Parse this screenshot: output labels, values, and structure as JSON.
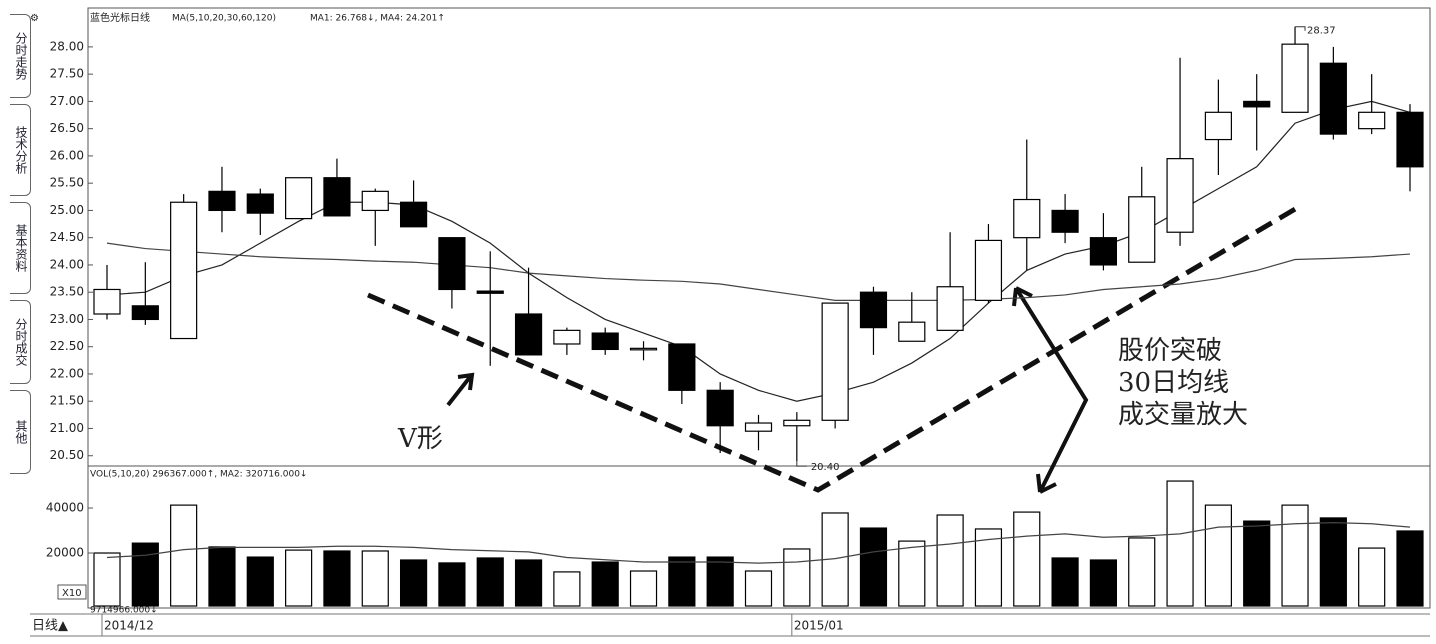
{
  "chart_data": {
    "type": "candlestick",
    "header": [
      "蓝色光标日线",
      "MA(5,10,20,30,60,120)",
      "MA1: 26.768↓, MA4: 24.201↑"
    ],
    "tabs": [
      "分时走势",
      "技术分析",
      "基本资料",
      "分时成交",
      "其他"
    ],
    "categories": [
      "2014/12",
      null,
      null,
      null,
      null,
      null,
      null,
      null,
      null,
      null,
      null,
      null,
      null,
      null,
      null,
      null,
      null,
      null,
      "2015/01",
      null,
      null,
      null,
      null,
      null,
      null,
      null,
      null,
      null,
      null,
      null,
      null,
      null,
      null,
      null,
      null
    ],
    "open": [
      23.1,
      23.25,
      22.65,
      25.35,
      25.3,
      24.85,
      25.6,
      25.0,
      25.15,
      24.5,
      23.52,
      23.1,
      22.55,
      22.75,
      22.45,
      22.55,
      21.7,
      20.95,
      21.05,
      21.15,
      23.5,
      22.6,
      22.8,
      23.35,
      24.5,
      25.0,
      24.5,
      24.05,
      24.6,
      26.3,
      27.0,
      26.8,
      27.7,
      26.5,
      26.8
    ],
    "high": [
      24.0,
      24.05,
      25.3,
      25.8,
      25.4,
      25.6,
      25.95,
      25.4,
      25.55,
      24.5,
      24.25,
      23.95,
      22.85,
      22.85,
      22.6,
      22.55,
      21.85,
      21.25,
      21.3,
      23.3,
      23.6,
      23.5,
      24.6,
      24.75,
      26.3,
      25.3,
      24.95,
      25.8,
      27.8,
      27.4,
      27.5,
      28.37,
      28.0,
      27.5,
      26.95
    ],
    "low": [
      23.0,
      22.9,
      22.65,
      24.6,
      24.55,
      24.85,
      24.9,
      24.35,
      24.7,
      23.2,
      22.15,
      22.35,
      22.35,
      22.35,
      22.25,
      21.45,
      20.55,
      20.6,
      20.4,
      21.0,
      22.35,
      22.6,
      22.8,
      23.3,
      23.9,
      24.4,
      23.9,
      24.05,
      24.35,
      25.65,
      26.1,
      26.8,
      26.3,
      26.4,
      25.35
    ],
    "close": [
      23.55,
      23.0,
      25.15,
      25.0,
      24.95,
      25.6,
      24.9,
      25.35,
      24.7,
      23.55,
      23.48,
      22.35,
      22.8,
      22.45,
      22.47,
      21.7,
      21.05,
      21.1,
      21.15,
      23.3,
      22.85,
      22.95,
      23.6,
      24.45,
      25.2,
      24.6,
      24.0,
      25.25,
      25.95,
      26.8,
      26.9,
      28.05,
      26.4,
      26.8,
      25.8
    ],
    "low_label": "20.40",
    "up_color": "#ffffff",
    "down_color": "#000000",
    "edge_color": "#000000",
    "ma_lines": [
      {
        "color": "#222222",
        "values": [
          23.45,
          23.5,
          23.8,
          24.0,
          24.4,
          24.8,
          25.15,
          25.15,
          25.1,
          24.8,
          24.4,
          23.85,
          23.4,
          23.0,
          22.75,
          22.5,
          22.0,
          21.7,
          21.5,
          21.65,
          21.85,
          22.2,
          22.65,
          23.3,
          23.9,
          24.2,
          24.35,
          24.6,
          25.0,
          25.4,
          25.8,
          26.6,
          26.85,
          27.0,
          26.8
        ]
      },
      {
        "color": "#444444",
        "values": [
          24.4,
          24.3,
          24.25,
          24.2,
          24.15,
          24.12,
          24.1,
          24.07,
          24.05,
          24.0,
          23.95,
          23.85,
          23.8,
          23.75,
          23.72,
          23.7,
          23.65,
          23.55,
          23.45,
          23.35,
          23.35,
          23.35,
          23.35,
          23.37,
          23.4,
          23.45,
          23.55,
          23.6,
          23.65,
          23.75,
          23.9,
          24.1,
          24.12,
          24.15,
          24.2
        ]
      }
    ],
    "ylim": [
      20.33,
      28.64
    ],
    "yticks": [
      {
        "value": 20.5,
        "label": "20.50"
      },
      {
        "value": 21,
        "label": "21.00"
      },
      {
        "value": 21.5,
        "label": "21.50"
      },
      {
        "value": 22,
        "label": "22.00"
      },
      {
        "value": 22.5,
        "label": "22.50"
      },
      {
        "value": 23,
        "label": "23.00"
      },
      {
        "value": 23.5,
        "label": "23.50"
      },
      {
        "value": 24,
        "label": "24.00"
      },
      {
        "value": 24.5,
        "label": "24.50"
      },
      {
        "value": 25,
        "label": "25.00"
      },
      {
        "value": 25.5,
        "label": "25.50"
      },
      {
        "value": 26,
        "label": "26.00"
      },
      {
        "value": 26.5,
        "label": "26.50"
      },
      {
        "value": 27,
        "label": "27.00"
      },
      {
        "value": 27.5,
        "label": "27.50"
      },
      {
        "value": 28,
        "label": "28.00"
      }
    ],
    "volume": {
      "header": "VOL(5,10,20) 296367.000↑, MA2: 320716.000↓",
      "unit_label": "X10",
      "footer": "9714966.000↓",
      "values": [
        20000,
        24400,
        41300,
        22700,
        18200,
        21300,
        20900,
        20900,
        16900,
        15600,
        17800,
        16900,
        11600,
        16000,
        12000,
        18200,
        18200,
        12000,
        21800,
        37800,
        31100,
        25300,
        36900,
        30700,
        38200,
        17800,
        16900,
        26700,
        52000,
        41300,
        34200,
        41300,
        35600,
        22200,
        29800
      ],
      "ma": [
        18000,
        19000,
        21500,
        22500,
        22500,
        22500,
        23000,
        23000,
        22500,
        21500,
        21000,
        20500,
        18000,
        17000,
        16000,
        16000,
        16000,
        15500,
        16000,
        17500,
        20500,
        22500,
        24000,
        26000,
        27500,
        28500,
        27000,
        27500,
        28500,
        31500,
        32000,
        33000,
        33500,
        33000,
        31500
      ],
      "ma_color": "#444444",
      "ylim": [
        0,
        57800
      ],
      "yticks": [
        20000,
        40000
      ]
    },
    "period_label": "日线▲",
    "annotations": [
      "V形",
      "股价突破",
      "30日均线",
      "成交量放大"
    ]
  }
}
